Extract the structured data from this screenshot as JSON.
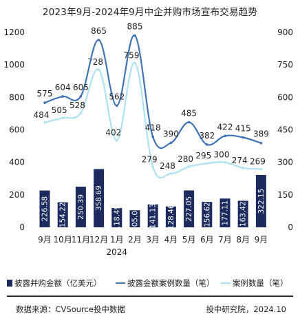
{
  "chart_data": {
    "type": "bar",
    "title": "2023年9月-2024年9月中企并购市场宣布交易趋势",
    "categories": [
      "9月",
      "10月",
      "11月",
      "12月",
      "1月",
      "2月",
      "3月",
      "4月",
      "5月",
      "6月",
      "7月",
      "8月",
      "9月"
    ],
    "year_label": "2024",
    "series": [
      {
        "name": "披露并购金额（亿美元）",
        "type": "bar",
        "axis": "left",
        "color": "#1c2a5e",
        "values": [
          226.58,
          154.22,
          250.39,
          358.69,
          118.49,
          105.05,
          141.13,
          128.46,
          227.05,
          156.62,
          177.11,
          163.42,
          322.15
        ],
        "labels": [
          "226.58",
          "154.22",
          "250.39",
          "358.69",
          "118.49",
          "105.05",
          "141.13",
          "128.46",
          "227.05",
          "156.62",
          "177.11",
          "163.42",
          "322.15"
        ]
      },
      {
        "name": "披露金额案例数量（笔）",
        "type": "line",
        "axis": "right",
        "color": "#3f73b5",
        "values": [
          575,
          604,
          605,
          865,
          562,
          885,
          418,
          390,
          485,
          382,
          422,
          415,
          389
        ]
      },
      {
        "name": "案例数量（笔）",
        "type": "line",
        "axis": "right",
        "color": "#aee2f2",
        "values": [
          484,
          505,
          528,
          728,
          402,
          759,
          279,
          248,
          280,
          295,
          300,
          274,
          269
        ]
      }
    ],
    "y_left": {
      "min": 0,
      "max": 1200,
      "ticks": [
        "0",
        "200",
        "400",
        "600",
        "800",
        "1000",
        "1200"
      ]
    },
    "y_right": {
      "min": 0,
      "max": 900,
      "ticks": [
        "0",
        "150",
        "300",
        "450",
        "600",
        "750",
        "900"
      ]
    },
    "grid": false,
    "legend_position": "bottom"
  },
  "footer": {
    "source": "数据来源：CVSource投中数据",
    "credit": "投中研究院，2024.10"
  }
}
